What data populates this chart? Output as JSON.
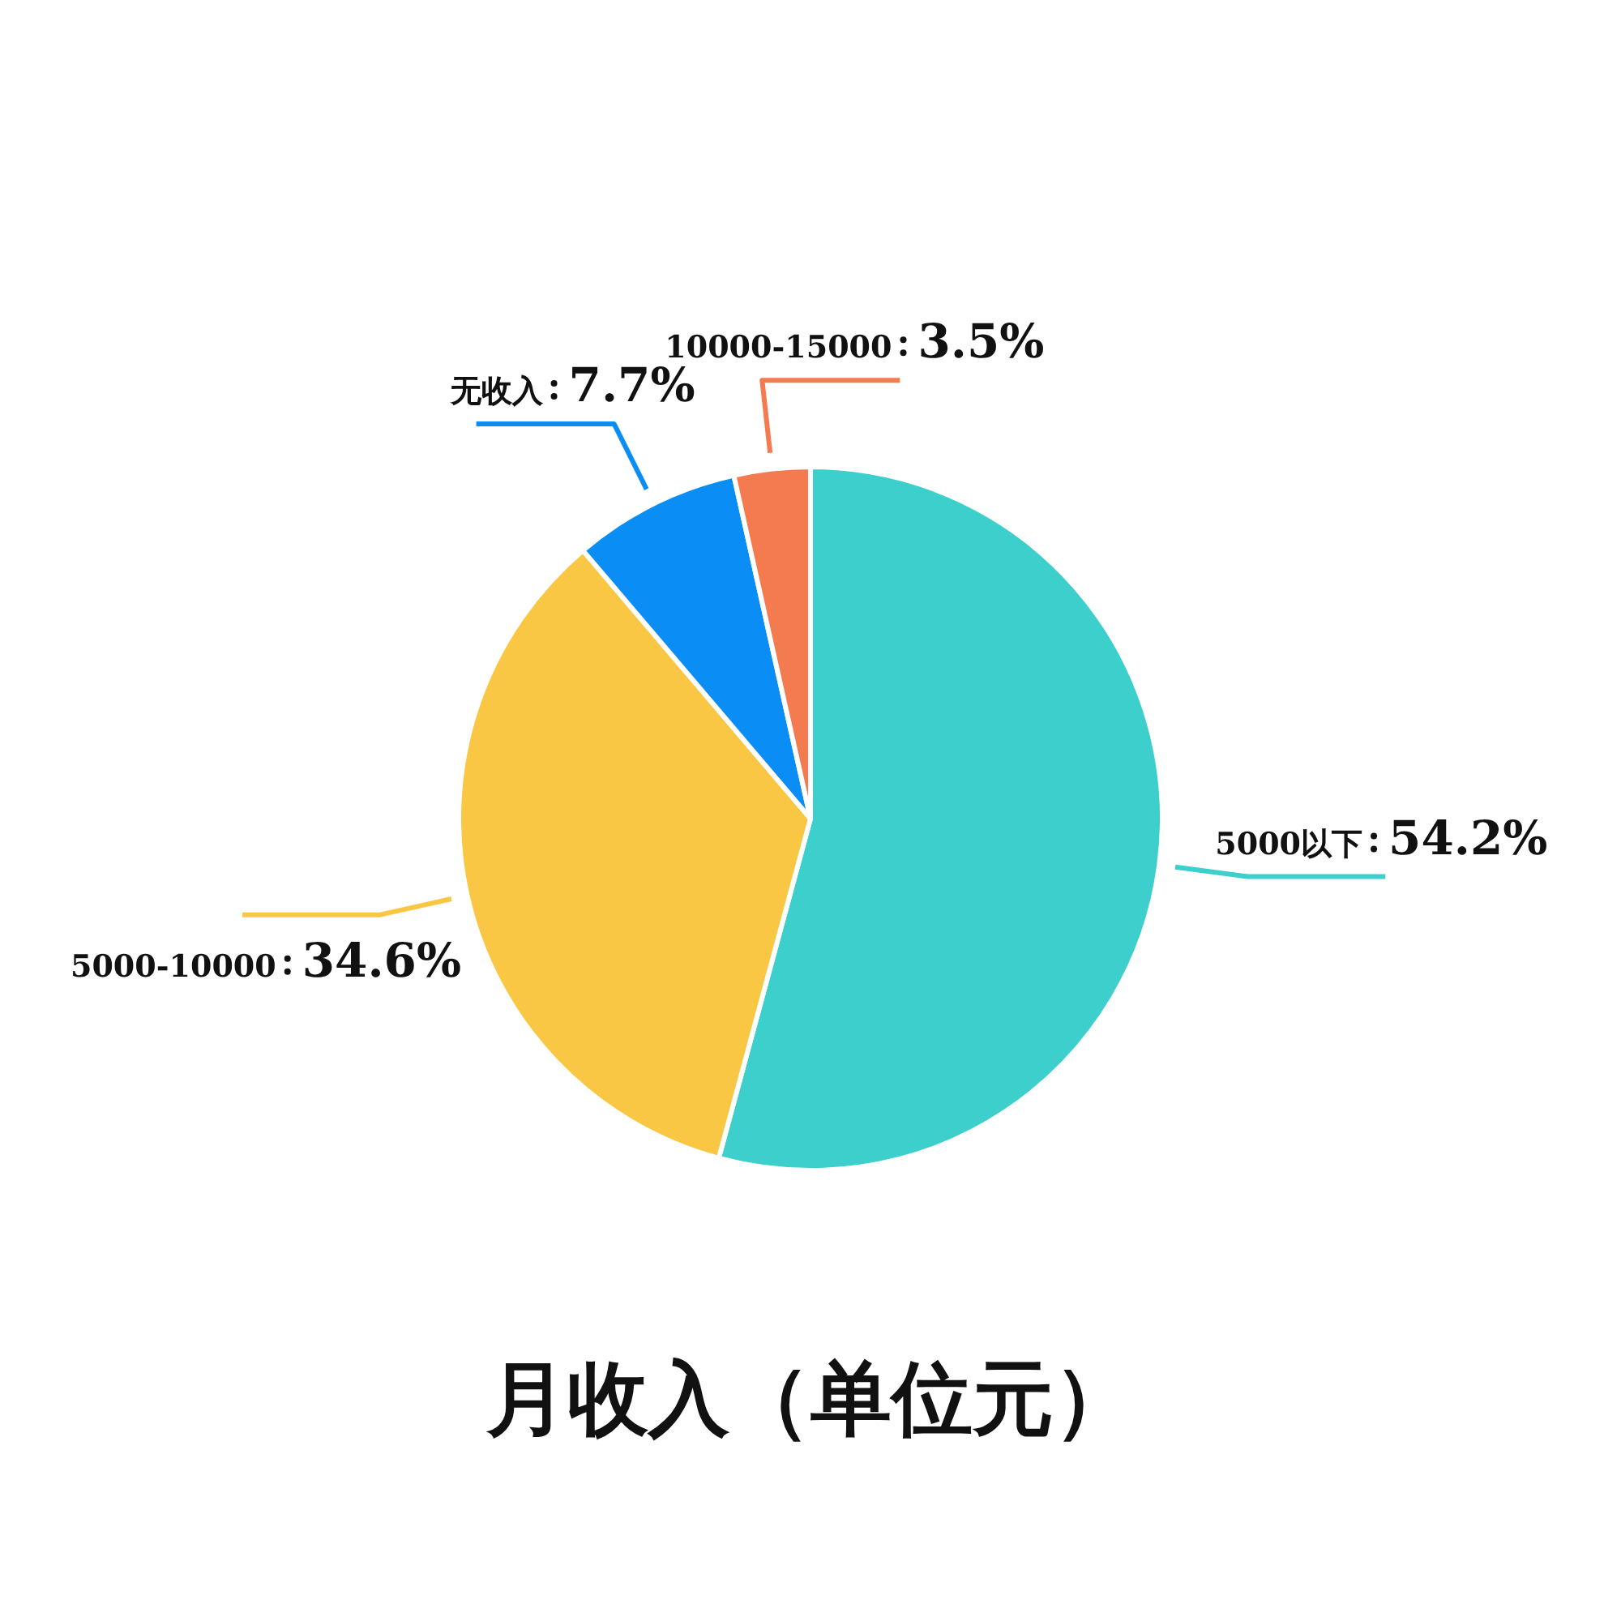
{
  "chart_data": {
    "type": "pie",
    "title": "月收入（单位元）",
    "categories": [
      "5000以下",
      "5000-10000",
      "无收入",
      "10000-15000"
    ],
    "values": [
      54.2,
      34.6,
      7.7,
      3.5
    ],
    "value_labels": [
      "54.2%",
      "34.6%",
      "7.7%",
      "3.5%"
    ],
    "colors": [
      "#3ccfcc",
      "#f9c744",
      "#0a8ef5",
      "#f47a50"
    ]
  }
}
